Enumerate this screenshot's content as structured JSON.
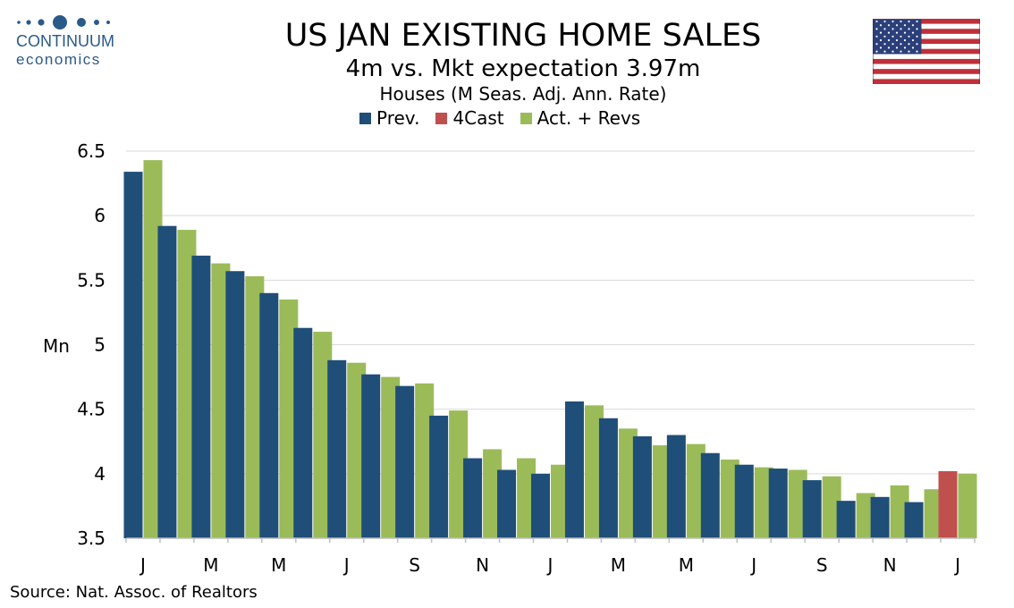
{
  "header": {
    "title": "US JAN EXISTING HOME SALES",
    "subtitle": "4m vs. Mkt expectation 3.97m",
    "units": "Houses (M Seas. Adj. Ann. Rate)"
  },
  "logo": {
    "brand": "CONTINUUM",
    "sub": "economics"
  },
  "flag_icon": "us-flag-icon",
  "footer": {
    "source": "Source: Nat. Assoc. of Realtors"
  },
  "colors": {
    "prev": "#1f4e79",
    "forecast": "#c0504d",
    "actual": "#9bbb59",
    "grid": "#d9d9d9",
    "logo": "#2a5a8a"
  },
  "chart_data": {
    "type": "bar",
    "ylabel": "Mn",
    "ylim": [
      3.5,
      6.5
    ],
    "yticks": [
      "3.5",
      "4",
      "4.5",
      "5",
      "5.5",
      "6",
      "6.5"
    ],
    "grid": true,
    "legend_position": "top-center",
    "x_tick_labels": [
      "J",
      "",
      "M",
      "",
      "M",
      "",
      "J",
      "",
      "S",
      "",
      "N",
      "",
      "J",
      "",
      "M",
      "",
      "M",
      "",
      "J",
      "",
      "S",
      "",
      "N",
      "",
      "J"
    ],
    "series": [
      {
        "name": "Prev.",
        "values": [
          6.34,
          5.92,
          5.69,
          5.57,
          5.4,
          5.13,
          4.88,
          4.77,
          4.68,
          4.45,
          4.12,
          4.03,
          4.0,
          4.56,
          4.43,
          4.29,
          4.3,
          4.16,
          4.07,
          4.04,
          3.95,
          3.79,
          3.82,
          3.78,
          null
        ]
      },
      {
        "name": "4Cast",
        "values": [
          null,
          null,
          null,
          null,
          null,
          null,
          null,
          null,
          null,
          null,
          null,
          null,
          null,
          null,
          null,
          null,
          null,
          null,
          null,
          null,
          null,
          null,
          null,
          null,
          4.02
        ]
      },
      {
        "name": "Act. + Revs",
        "values": [
          6.43,
          5.89,
          5.63,
          5.53,
          5.35,
          5.1,
          4.86,
          4.75,
          4.7,
          4.49,
          4.19,
          4.12,
          4.07,
          4.53,
          4.35,
          4.22,
          4.23,
          4.11,
          4.05,
          4.03,
          3.98,
          3.85,
          3.91,
          3.88,
          4.0
        ]
      }
    ]
  }
}
